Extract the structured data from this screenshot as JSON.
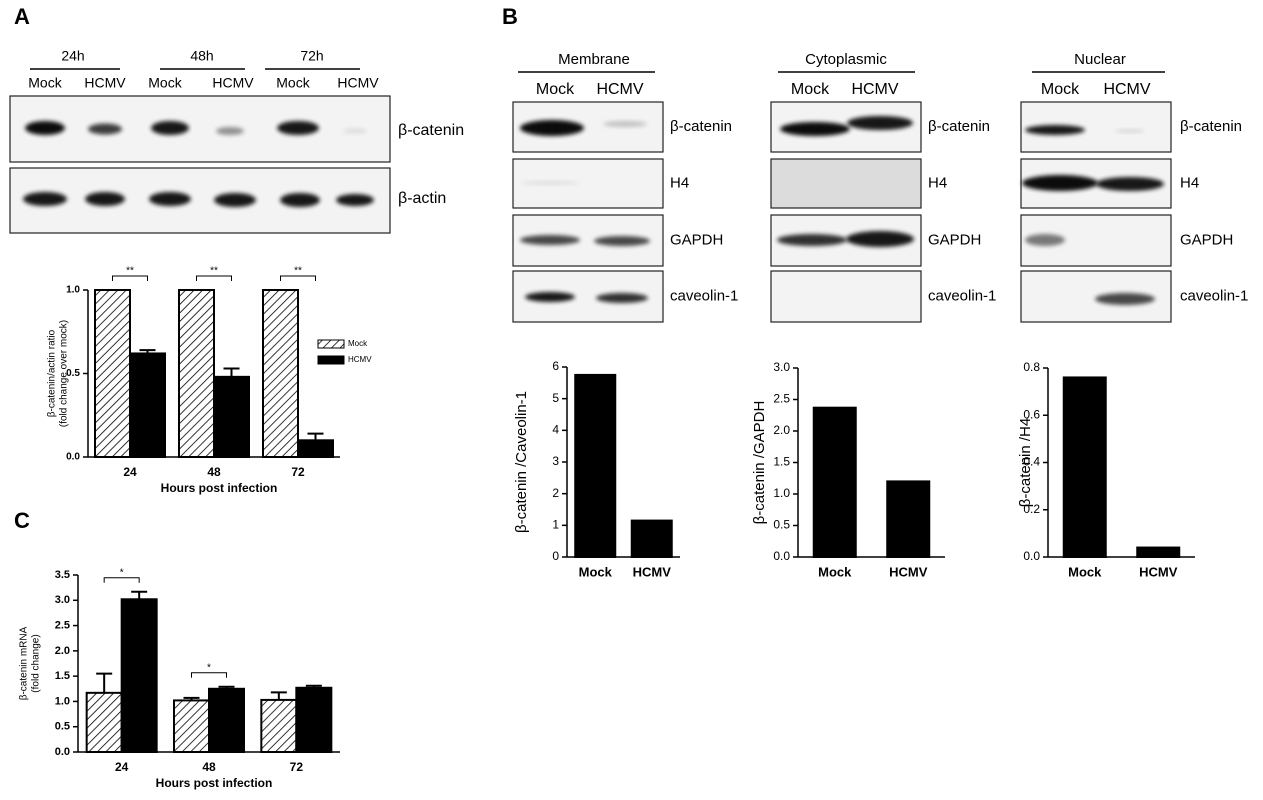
{
  "panel_labels": [
    "A",
    "B",
    "C"
  ],
  "blot_a": {
    "timepoints": [
      "24h",
      "48h",
      "72h"
    ],
    "lanes": [
      "Mock",
      "HCMV"
    ],
    "rows": [
      "β-catenin",
      "β-actin"
    ]
  },
  "blot_b": {
    "fractions": [
      "Membrane",
      "Cytoplasmic",
      "Nuclear"
    ],
    "lanes": [
      "Mock",
      "HCMV"
    ],
    "rows": [
      "β-catenin",
      "H4",
      "GAPDH",
      "caveolin-1"
    ]
  },
  "chart_data": [
    {
      "type": "bar",
      "categories": [
        "24",
        "48",
        "72"
      ],
      "series": [
        {
          "name": "Mock",
          "color": "#ffffff",
          "hatch": true,
          "values": [
            1,
            1,
            1
          ]
        },
        {
          "name": "HCMV",
          "color": "#000000",
          "values": [
            0.62,
            0.48,
            0.1
          ],
          "errors": [
            0.02,
            0.05,
            0.04
          ]
        }
      ],
      "ylim": [
        0,
        1
      ],
      "yticks": [
        {
          "value": 0,
          "label": "0.0"
        },
        0.5,
        {
          "value": 1,
          "label": "1.0"
        }
      ],
      "ylabel": [
        "β-catenin/actin ratio",
        "(fold change over mock)"
      ],
      "xlabel": "Hours post infection",
      "annotations": [
        "**",
        "**",
        "**"
      ],
      "legend": "right"
    },
    {
      "type": "bar",
      "categories": [
        "Mock",
        "HCMV"
      ],
      "values": [
        5.75,
        1.15
      ],
      "color": "#000000",
      "ylim": [
        0,
        6
      ],
      "yticks": [
        0,
        1,
        2,
        3,
        4,
        5,
        6
      ],
      "ylabel": [
        "β-catenin /Caveolin-1"
      ]
    },
    {
      "type": "bar",
      "categories": [
        "Mock",
        "HCMV"
      ],
      "values": [
        2.37,
        1.2
      ],
      "color": "#000000",
      "ylim": [
        0,
        3
      ],
      "yticks": [
        {
          "value": 0,
          "label": "0.0"
        },
        0.5,
        {
          "value": 1,
          "label": "1.0"
        },
        1.5,
        {
          "value": 2,
          "label": "2.0"
        },
        2.5,
        {
          "value": 3,
          "label": "3.0"
        }
      ],
      "ylabel": [
        "β-catenin /GAPDH"
      ]
    },
    {
      "type": "bar",
      "categories": [
        "Mock",
        "HCMV"
      ],
      "values": [
        0.76,
        0.04
      ],
      "color": "#000000",
      "ylim": [
        0,
        0.8
      ],
      "yticks": [
        {
          "value": 0,
          "label": "0.0"
        },
        0.2,
        0.4,
        0.6,
        0.8
      ],
      "ylabel": [
        "β-catenin /H4"
      ]
    },
    {
      "type": "bar",
      "categories": [
        "24",
        "48",
        "72"
      ],
      "series": [
        {
          "name": "Mock",
          "color": "#ffffff",
          "hatch": true,
          "values": [
            1.17,
            1.02,
            1.03
          ],
          "errors": [
            0.38,
            0.05,
            0.15
          ]
        },
        {
          "name": "HCMV",
          "color": "#000000",
          "values": [
            3.02,
            1.25,
            1.27
          ],
          "errors": [
            0.15,
            0.04,
            0.04
          ]
        }
      ],
      "ylim": [
        0,
        3.5
      ],
      "yticks": [
        {
          "value": 0,
          "label": "0.0"
        },
        0.5,
        {
          "value": 1,
          "label": "1.0"
        },
        1.5,
        {
          "value": 2,
          "label": "2.0"
        },
        2.5,
        {
          "value": 3,
          "label": "3.0"
        },
        3.5
      ],
      "ylabel": [
        "β-catenin mRNA",
        "(fold change)"
      ],
      "xlabel": "Hours  post  infection",
      "annotations": [
        "*",
        "*"
      ]
    }
  ]
}
